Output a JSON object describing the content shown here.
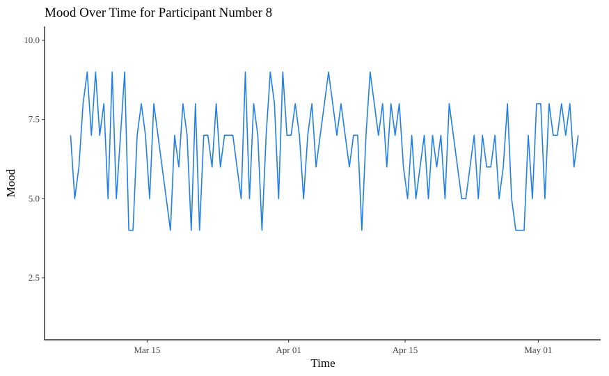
{
  "chart_data": {
    "type": "line",
    "title": "Mood Over Time for Participant Number 8",
    "xlabel": "Time",
    "ylabel": "Mood",
    "color": "#1f7fe9",
    "x": [
      5.8,
      6.3,
      6.8,
      7.3,
      7.8,
      8.3,
      8.8,
      9.3,
      9.8,
      10.3,
      10.8,
      11.3,
      11.8,
      12.3,
      12.8,
      13.3,
      13.8,
      14.3,
      14.8,
      15.3,
      15.8,
      16.3,
      16.8,
      17.3,
      17.8,
      18.3,
      18.8,
      19.3,
      19.8,
      20.3,
      20.8,
      21.3,
      21.8,
      22.3,
      22.8,
      23.3,
      23.8,
      24.3,
      24.8,
      25.3,
      25.8,
      26.3,
      26.8,
      27.3,
      27.8,
      28.3,
      28.8,
      29.3,
      29.8,
      30.3,
      30.8,
      31.3,
      31.8,
      32.3,
      32.8,
      33.3,
      33.8,
      34.3,
      34.8,
      35.3,
      35.8,
      36.3,
      36.8,
      37.3,
      37.8,
      38.3,
      38.8,
      39.3,
      39.8,
      40.3,
      40.8,
      41.3,
      41.8,
      42.3,
      42.8,
      43.3,
      43.8,
      44.3,
      44.8,
      45.3,
      45.8,
      46.3,
      46.8,
      47.3,
      47.8,
      48.3,
      48.8,
      49.3,
      49.8,
      50.3,
      50.8,
      51.3,
      51.8,
      52.3,
      52.8,
      53.3,
      53.8,
      54.3,
      54.8,
      55.3,
      55.8,
      56.3,
      56.8,
      57.3,
      57.8,
      58.3,
      58.8,
      59.3,
      59.8,
      60.3,
      60.8,
      61.3,
      61.8,
      62.3,
      62.8,
      63.3,
      63.8,
      64.3,
      64.8,
      65.3,
      65.8,
      66.3,
      66.8
    ],
    "values": [
      7,
      5,
      6,
      8,
      9,
      7,
      9,
      7,
      8,
      5,
      9,
      5,
      7,
      9,
      4,
      4,
      7,
      8,
      7,
      5,
      8,
      7,
      6,
      5,
      4,
      7,
      6,
      8,
      7,
      4,
      8,
      4,
      7,
      7,
      6,
      8,
      6,
      7,
      7,
      7,
      6,
      5,
      9,
      5,
      8,
      7,
      4,
      7,
      9,
      8,
      5,
      9,
      7,
      7,
      8,
      7,
      5,
      7,
      8,
      6,
      7,
      8,
      9,
      8,
      7,
      8,
      7,
      6,
      7,
      7,
      4,
      7,
      9,
      8,
      7,
      8,
      6,
      8,
      7,
      8,
      6,
      5,
      7,
      5,
      6,
      7,
      5,
      7,
      6,
      7,
      5,
      8,
      7,
      6,
      5,
      5,
      6,
      7,
      5,
      7,
      6,
      6,
      7,
      5,
      6,
      8,
      5,
      4,
      4,
      4,
      7,
      5,
      8,
      8,
      5,
      8,
      7,
      7,
      8,
      7,
      8,
      6,
      7
    ],
    "xlim": [
      2.67,
      69.5
    ],
    "xticks": [
      {
        "value": 15,
        "label": "Mar 15"
      },
      {
        "value": 32,
        "label": "Apr 01"
      },
      {
        "value": 46,
        "label": "Apr 15"
      },
      {
        "value": 62,
        "label": "May 01"
      }
    ],
    "ylim": [
      0.54,
      10.44
    ],
    "yticks": [
      {
        "value": 2.5,
        "label": "2.5"
      },
      {
        "value": 5,
        "label": "5.0"
      },
      {
        "value": 7.5,
        "label": "7.5"
      },
      {
        "value": 10,
        "label": "10.0"
      }
    ],
    "grid": false
  }
}
